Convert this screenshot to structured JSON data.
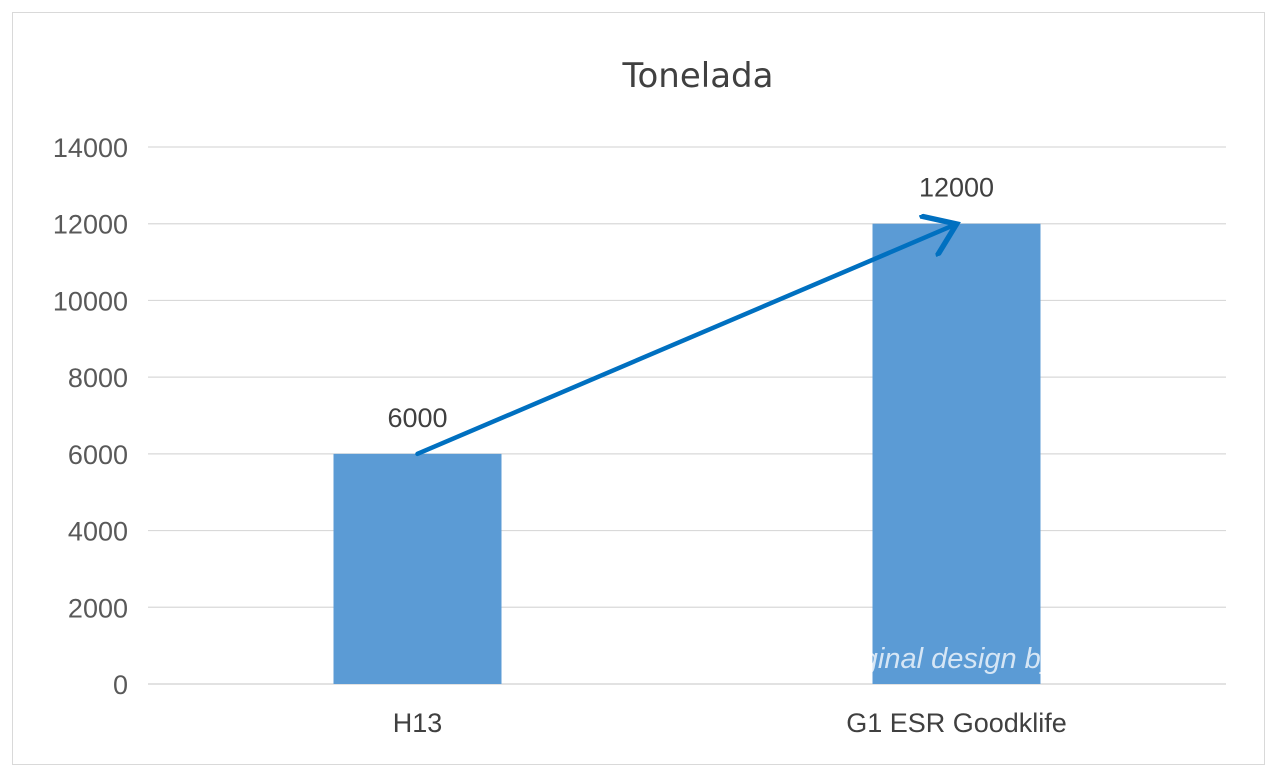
{
  "chart_data": {
    "type": "bar",
    "title": "Tonelada",
    "categories": [
      "H13",
      "G1 ESR Goodklife"
    ],
    "values": [
      6000,
      12000
    ],
    "data_labels": [
      "6000",
      "12000"
    ],
    "ylim": [
      0,
      14000
    ],
    "yticks": [
      0,
      2000,
      4000,
      6000,
      8000,
      10000,
      12000,
      14000
    ],
    "grid": true,
    "legend": "none",
    "bar_color": "#5b9bd5",
    "arrow_color": "#0070c0",
    "annotation": "arrow from H13 bar top to G1 ESR Goodklife bar top"
  },
  "watermark": "@original design by Goodklife"
}
